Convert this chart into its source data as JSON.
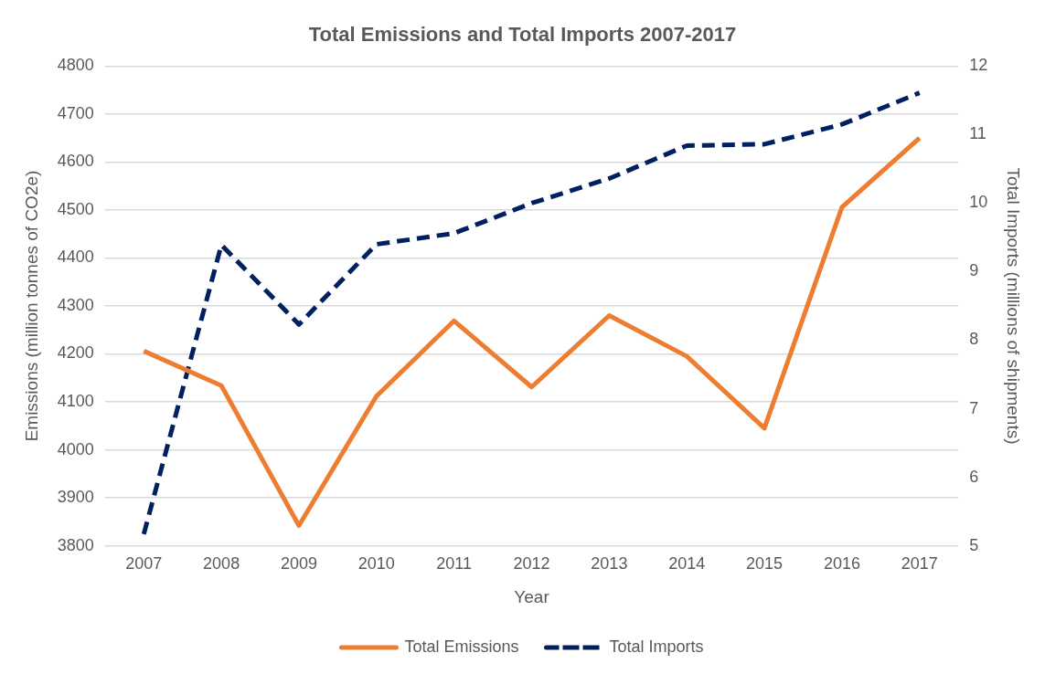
{
  "chart_data": {
    "type": "line",
    "title": "Total Emissions and Total Imports 2007-2017",
    "xlabel": "Year",
    "ylabel": "Emissions (million tonnes of CO2e)",
    "y2label": "Total Imports (millions of shipments)",
    "categories": [
      "2007",
      "2008",
      "2009",
      "2010",
      "2011",
      "2012",
      "2013",
      "2014",
      "2015",
      "2016",
      "2017"
    ],
    "series": [
      {
        "name": "Total Emissions",
        "color": "#ed7d31",
        "line_style": "solid",
        "values": [
          4206,
          4134,
          3842,
          4112,
          4269,
          4131,
          4280,
          4195,
          4045,
          4506,
          4650
        ]
      },
      {
        "name": "Total Imports",
        "color": "#002060",
        "line_style": "dashed",
        "axis": "y2",
        "values": [
          5.17,
          9.39,
          8.23,
          9.4,
          9.56,
          10.0,
          10.36,
          10.84,
          10.86,
          11.15,
          11.61
        ]
      }
    ],
    "ylim": [
      3800,
      4800
    ],
    "yticks": [
      3800,
      3900,
      4000,
      4100,
      4200,
      4300,
      4400,
      4500,
      4600,
      4700,
      4800
    ],
    "y2lim": [
      5,
      12
    ],
    "y2ticks": [
      5,
      6,
      7,
      8,
      9,
      10,
      11,
      12
    ],
    "grid": "y",
    "legend": "bottom",
    "marker": "none"
  }
}
